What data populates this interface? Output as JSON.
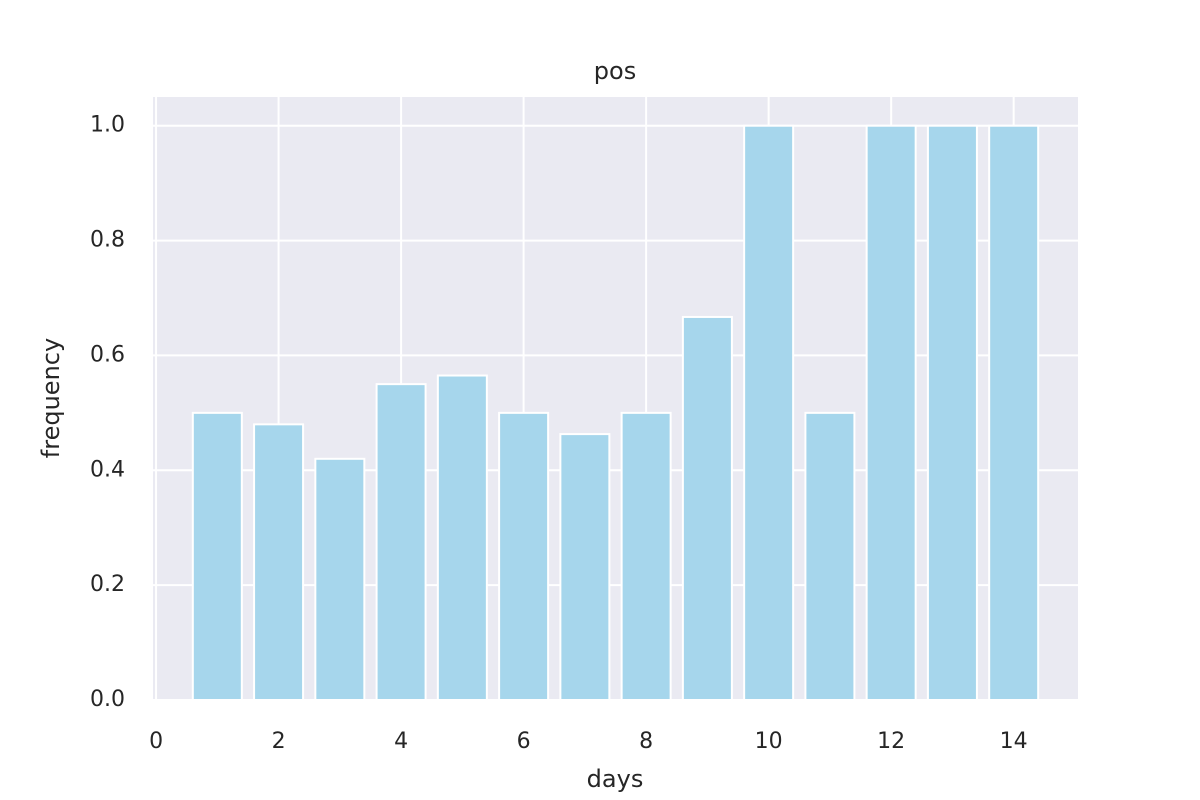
{
  "chart_data": {
    "type": "bar",
    "title": "pos",
    "x_label": "days",
    "y_label": "frequency",
    "x": [
      1,
      2,
      3,
      4,
      5,
      6,
      7,
      8,
      9,
      10,
      11,
      12,
      13,
      14
    ],
    "values": [
      0.5,
      0.48,
      0.42,
      0.55,
      0.565,
      0.5,
      0.463,
      0.5,
      0.667,
      1.0,
      0.5,
      1.0,
      1.0,
      1.0
    ],
    "color": "#a6d6ec",
    "xlim": [
      -0.05,
      15.05
    ],
    "xticks": [
      0,
      2,
      4,
      6,
      8,
      10,
      12,
      14
    ],
    "ylim": [
      0,
      1.05
    ],
    "yticks": [
      {
        "value": 0,
        "label": "0.0"
      },
      0.2,
      0.4,
      0.6,
      0.8,
      {
        "value": 1,
        "label": "1.0"
      }
    ],
    "grid": true
  }
}
